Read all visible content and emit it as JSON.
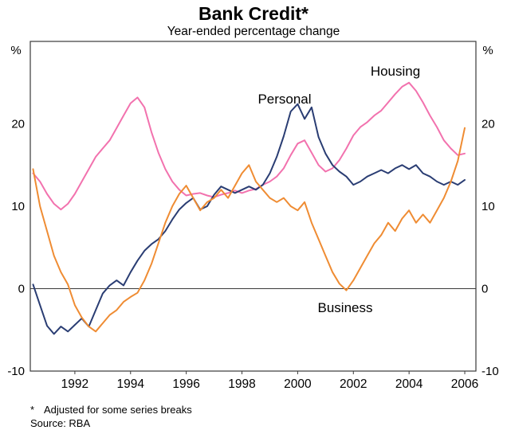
{
  "chart": {
    "title": "Bank Credit*",
    "subtitle": "Year-ended percentage change",
    "unit": "%",
    "footnote_marker": "*",
    "footnote": "Adjusted for some series breaks",
    "source": "Source: RBA"
  },
  "chart_data": {
    "type": "line",
    "title": "Bank Credit*",
    "subtitle": "Year-ended percentage change",
    "xlabel": "",
    "ylabel": "%",
    "xlim": [
      1990.4,
      2006.4
    ],
    "ylim": [
      -10,
      30
    ],
    "y_ticks": [
      -10,
      0,
      10,
      20
    ],
    "x_ticks": [
      1992,
      1994,
      1996,
      1998,
      2000,
      2002,
      2004,
      2006
    ],
    "zero_line": true,
    "grid": false,
    "legend": "in-plot series labels",
    "axis_color": "#3a3a3a",
    "x": [
      1990.5,
      1990.75,
      1991,
      1991.25,
      1991.5,
      1991.75,
      1992,
      1992.25,
      1992.5,
      1992.75,
      1993,
      1993.25,
      1993.5,
      1993.75,
      1994,
      1994.25,
      1994.5,
      1994.75,
      1995,
      1995.25,
      1995.5,
      1995.75,
      1996,
      1996.25,
      1996.5,
      1996.75,
      1997,
      1997.25,
      1997.5,
      1997.75,
      1998,
      1998.25,
      1998.5,
      1998.75,
      1999,
      1999.25,
      1999.5,
      1999.75,
      2000,
      2000.25,
      2000.5,
      2000.75,
      2001,
      2001.25,
      2001.5,
      2001.75,
      2002,
      2002.25,
      2002.5,
      2002.75,
      2003,
      2003.25,
      2003.5,
      2003.75,
      2004,
      2004.25,
      2004.5,
      2004.75,
      2005,
      2005.25,
      2005.5,
      2005.75,
      2006
    ],
    "series": [
      {
        "name": "Housing",
        "color": "#f272ae",
        "values": [
          14,
          13,
          11.5,
          10.3,
          9.6,
          10.3,
          11.5,
          13,
          14.5,
          16,
          17,
          18,
          19.5,
          21,
          22.5,
          23.2,
          22,
          19,
          16.5,
          14.5,
          13,
          12,
          11.3,
          11.5,
          11.6,
          11.3,
          11.1,
          11.4,
          11.6,
          11.9,
          11.6,
          11.9,
          12.1,
          12.6,
          13,
          13.6,
          14.6,
          16.2,
          17.6,
          18,
          16.5,
          15,
          14.2,
          14.6,
          15.6,
          17,
          18.6,
          19.6,
          20.2,
          21,
          21.6,
          22.6,
          23.6,
          24.5,
          25,
          24,
          22.6,
          21,
          19.6,
          18,
          17,
          16.2,
          16.4
        ]
      },
      {
        "name": "Personal",
        "color": "#2a3d73",
        "values": [
          0.5,
          -2,
          -4.5,
          -5.5,
          -4.6,
          -5.2,
          -4.4,
          -3.6,
          -4.6,
          -2.6,
          -0.6,
          0.4,
          1,
          0.4,
          2,
          3.4,
          4.6,
          5.4,
          6,
          7,
          8.4,
          9.6,
          10.4,
          11,
          9.6,
          10,
          11.4,
          12.4,
          12,
          11.6,
          12,
          12.4,
          12,
          12.6,
          14,
          16,
          18.5,
          21.5,
          22.4,
          20.6,
          22,
          18.4,
          16.4,
          15,
          14.2,
          13.6,
          12.6,
          13,
          13.6,
          14,
          14.4,
          14,
          14.6,
          15,
          14.5,
          15,
          14,
          13.6,
          13,
          12.6,
          13,
          12.6,
          13.2
        ]
      },
      {
        "name": "Business",
        "color": "#ef8c33",
        "values": [
          14.5,
          10,
          7,
          4,
          2,
          0.5,
          -2,
          -3.5,
          -4.6,
          -5.2,
          -4.2,
          -3.2,
          -2.6,
          -1.6,
          -1,
          -0.5,
          1,
          3,
          5.5,
          8,
          10,
          11.5,
          12.5,
          11,
          9.5,
          10.5,
          11,
          12,
          11,
          12.5,
          14,
          15,
          13,
          12,
          11,
          10.5,
          11,
          10,
          9.5,
          10.5,
          8,
          6,
          4,
          2,
          0.6,
          -0.2,
          1,
          2.5,
          4,
          5.5,
          6.5,
          8,
          7,
          8.5,
          9.5,
          8,
          9,
          8,
          9.5,
          11,
          13,
          15.5,
          19.5
        ]
      }
    ],
    "source": "RBA",
    "footnote": "Adjusted for some series breaks"
  }
}
